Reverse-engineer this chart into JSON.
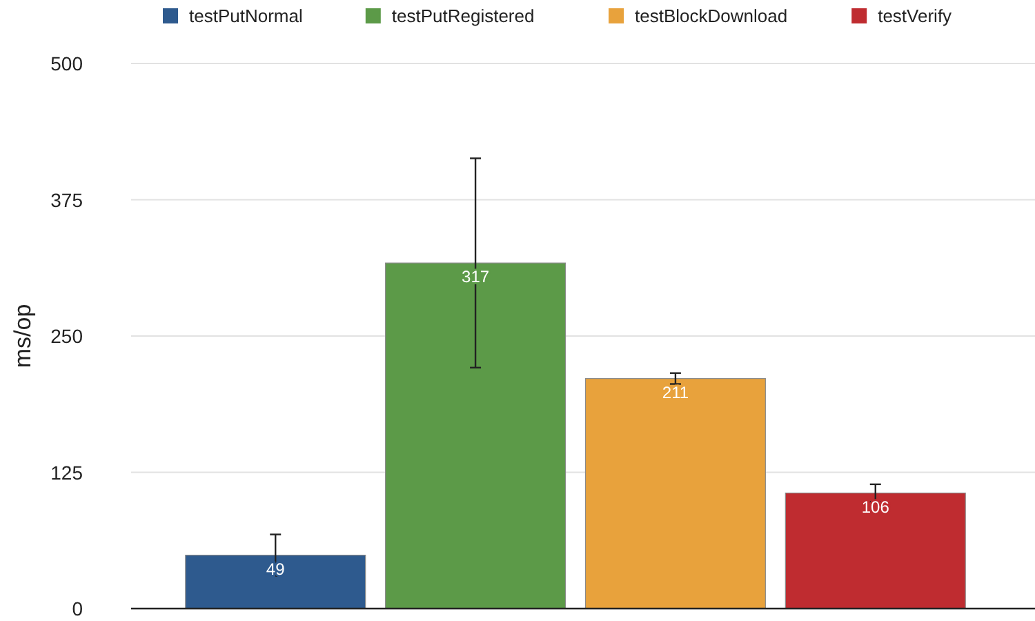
{
  "chart_data": {
    "type": "bar",
    "ylabel": "ms/op",
    "categories": [
      null
    ],
    "series": [
      {
        "name": "testPutNormal",
        "color": "#2e5a8e",
        "values": [
          49
        ],
        "errors": [
          [
            30,
            68
          ]
        ]
      },
      {
        "name": "testPutRegistered",
        "color": "#5c9a48",
        "values": [
          317
        ],
        "errors": [
          [
            221,
            413
          ]
        ]
      },
      {
        "name": "testBlockDownload",
        "color": "#e8a23c",
        "values": [
          211
        ],
        "errors": [
          [
            206,
            216
          ]
        ]
      },
      {
        "name": "testVerify",
        "color": "#bf2c30",
        "values": [
          106
        ],
        "errors": [
          [
            98,
            114
          ]
        ]
      }
    ],
    "ylim": [
      0,
      500
    ],
    "yticks": [
      0,
      125,
      250,
      375,
      500
    ],
    "grid": "y",
    "legend": "top",
    "data_labels": true
  }
}
